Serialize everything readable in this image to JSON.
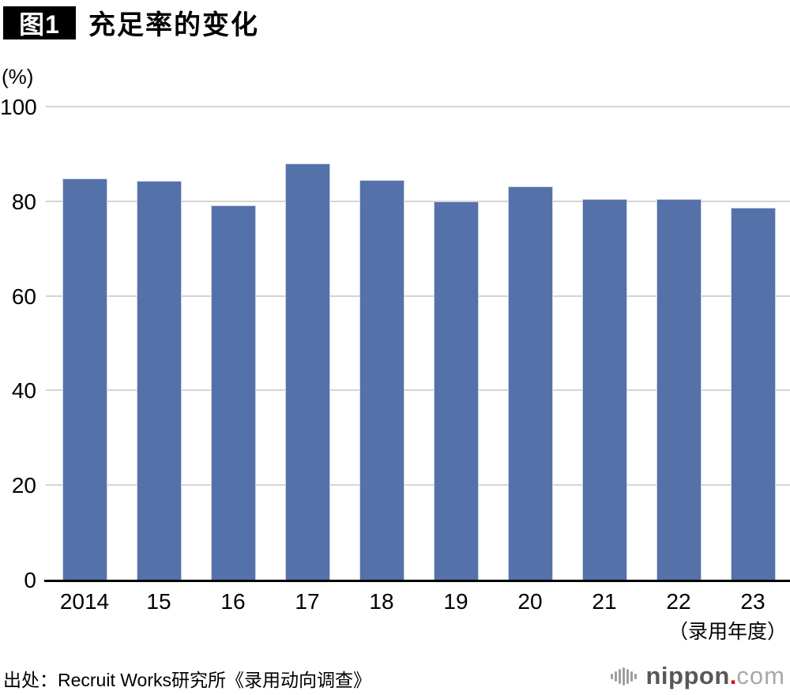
{
  "header": {
    "badge": "图1",
    "title": "充足率的变化"
  },
  "chart_data": {
    "type": "bar",
    "title": "充足率的变化",
    "unit_label": "(%)",
    "categories": [
      "2014",
      "15",
      "16",
      "17",
      "18",
      "19",
      "20",
      "21",
      "22",
      "23"
    ],
    "values": [
      84.8,
      84.3,
      79.2,
      88.0,
      84.4,
      80.0,
      83.2,
      80.5,
      80.5,
      78.6
    ],
    "ylim": [
      0,
      100
    ],
    "yticks": [
      0,
      20,
      40,
      60,
      80,
      100
    ],
    "xlabel": "",
    "ylabel": "(%)",
    "x_axis_note": "（录用年度）",
    "grid": "horizontal",
    "legend": "none",
    "bar_color": "#5571a9",
    "grid_color": "#d4d4d4"
  },
  "footer": {
    "source": "出处：Recruit Works研究所《录用动向调查》",
    "logo": {
      "icon": "soundwave-bars-icon",
      "name": "nippon",
      "dot": ".",
      "tld": "com"
    }
  }
}
